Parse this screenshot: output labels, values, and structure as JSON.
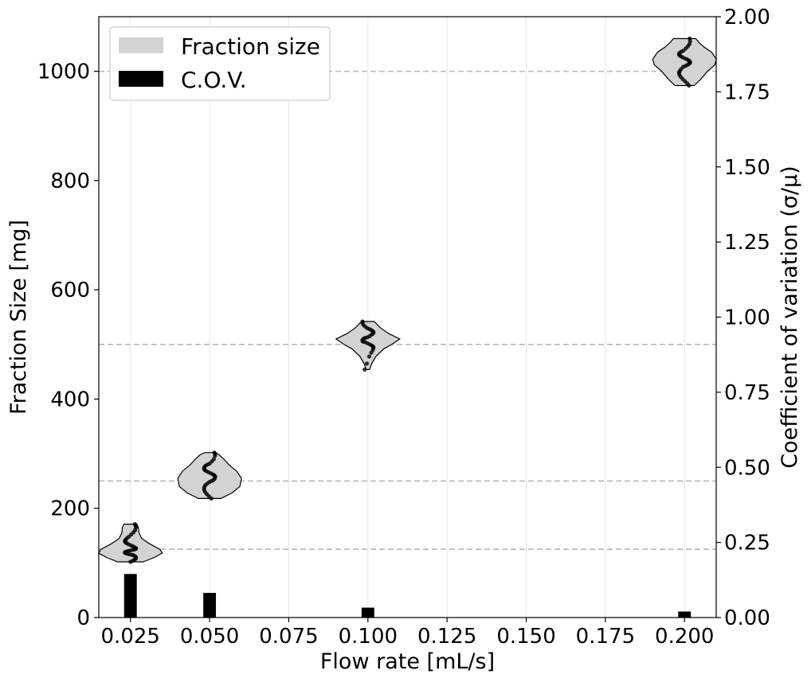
{
  "chart_data": {
    "type": "violin",
    "xlabel": "Flow rate [mL/s]",
    "ylabel_left": "Fraction Size [mg]",
    "ylabel_right": "Coefficient of variation (σ/μ)",
    "xlim": [
      0.015,
      0.21
    ],
    "ylim_left": [
      0,
      1100
    ],
    "ylim_right": [
      0,
      2.0
    ],
    "x_ticks": [
      0.025,
      0.05,
      0.075,
      0.1,
      0.125,
      0.15,
      0.175,
      0.2
    ],
    "x_tick_labels": [
      "0.025",
      "0.050",
      "0.075",
      "0.100",
      "0.125",
      "0.150",
      "0.175",
      "0.200"
    ],
    "y_left_ticks": [
      0,
      200,
      400,
      600,
      800,
      1000
    ],
    "y_left_tick_labels": [
      "0",
      "200",
      "400",
      "600",
      "800",
      "1000"
    ],
    "y_right_ticks": [
      0,
      0.25,
      0.5,
      0.75,
      1.0,
      1.25,
      1.5,
      1.75,
      2.0
    ],
    "y_right_tick_labels": [
      "0.00",
      "0.25",
      "0.50",
      "0.75",
      "1.00",
      "1.25",
      "1.50",
      "1.75",
      "2.00"
    ],
    "grid": "vertical",
    "reference_lines_left": [
      125,
      250,
      500,
      1000
    ],
    "legend": {
      "position": "top-left",
      "entries": [
        {
          "label": "Fraction size",
          "color": "#d3d3d3"
        },
        {
          "label": "C.O.V.",
          "color": "#000000"
        }
      ]
    },
    "series": [
      {
        "name": "Fraction size",
        "kind": "violin",
        "color": "#d3d3d3",
        "groups": [
          {
            "x": 0.025,
            "min": 102,
            "max": 171,
            "profile": [
              [
                102,
                0.4
              ],
              [
                110,
                0.75
              ],
              [
                118,
                1.0
              ],
              [
                125,
                0.92
              ],
              [
                135,
                0.6
              ],
              [
                145,
                0.35
              ],
              [
                155,
                0.27
              ],
              [
                165,
                0.25
              ],
              [
                171,
                0.2
              ]
            ],
            "points": [
              102,
              104,
              106,
              108,
              110,
              112,
              114,
              115,
              116,
              117,
              118,
              119,
              120,
              121,
              122,
              123,
              124,
              125,
              126,
              127,
              128,
              130,
              132,
              134,
              136,
              138,
              140,
              142,
              145,
              148,
              152,
              156,
              160,
              165,
              168,
              171
            ]
          },
          {
            "x": 0.05,
            "min": 218,
            "max": 302,
            "profile": [
              [
                218,
                0.35
              ],
              [
                228,
                0.7
              ],
              [
                240,
                0.95
              ],
              [
                255,
                1.0
              ],
              [
                268,
                0.85
              ],
              [
                280,
                0.6
              ],
              [
                290,
                0.45
              ],
              [
                298,
                0.3
              ],
              [
                302,
                0.15
              ]
            ],
            "points": [
              218,
              222,
              226,
              230,
              234,
              238,
              242,
              245,
              248,
              250,
              252,
              255,
              258,
              260,
              262,
              264,
              266,
              268,
              270,
              272,
              275,
              278,
              280,
              282,
              286,
              290,
              296,
              300,
              302
            ]
          },
          {
            "x": 0.1,
            "min": 454,
            "max": 542,
            "profile": [
              [
                454,
                0.05
              ],
              [
                465,
                0.12
              ],
              [
                478,
                0.25
              ],
              [
                492,
                0.5
              ],
              [
                500,
                0.75
              ],
              [
                510,
                1.0
              ],
              [
                520,
                0.65
              ],
              [
                530,
                0.4
              ],
              [
                542,
                0.2
              ]
            ],
            "points": [
              454,
              465,
              478,
              485,
              490,
              494,
              496,
              498,
              500,
              502,
              504,
              505,
              506,
              508,
              510,
              512,
              513,
              515,
              518,
              520,
              522,
              524,
              526,
              528,
              530,
              533,
              536,
              540,
              542
            ]
          },
          {
            "x": 0.2,
            "min": 974,
            "max": 1060,
            "profile": [
              [
                974,
                0.3
              ],
              [
                985,
                0.5
              ],
              [
                1000,
                0.72
              ],
              [
                1012,
                0.95
              ],
              [
                1022,
                1.0
              ],
              [
                1035,
                0.85
              ],
              [
                1045,
                0.6
              ],
              [
                1053,
                0.45
              ],
              [
                1060,
                0.35
              ]
            ],
            "points": [
              974,
              978,
              982,
              986,
              990,
              994,
              998,
              1000,
              1004,
              1008,
              1010,
              1012,
              1014,
              1016,
              1018,
              1020,
              1022,
              1024,
              1026,
              1028,
              1030,
              1032,
              1034,
              1036,
              1038,
              1042,
              1046,
              1050,
              1055,
              1060
            ]
          }
        ]
      },
      {
        "name": "C.O.V.",
        "kind": "bar",
        "axis": "right",
        "color": "#000000",
        "x": [
          0.025,
          0.05,
          0.1,
          0.2
        ],
        "values": [
          0.145,
          0.082,
          0.033,
          0.02
        ],
        "bar_width": 0.004
      }
    ]
  }
}
